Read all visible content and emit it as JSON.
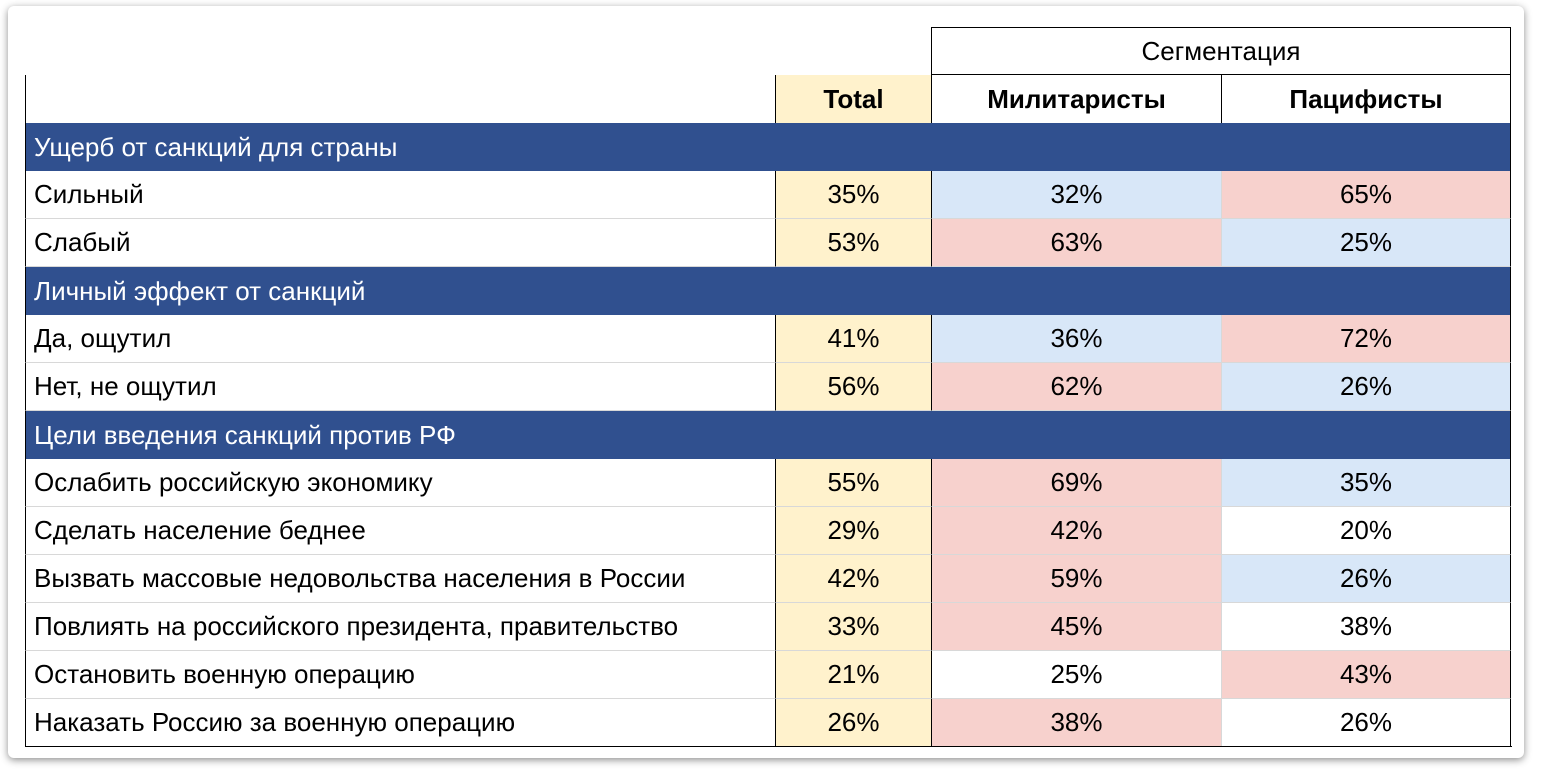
{
  "header": {
    "group": "Сегментация",
    "columns": [
      "Total",
      "Милитаристы",
      "Пацифисты"
    ]
  },
  "colors": {
    "section": "#30508f",
    "total": "#fff2cc"
  },
  "sections": [
    {
      "title": "Ущерб от санкций для страны",
      "rows": [
        {
          "label": "Сильный",
          "cells": [
            "35%",
            "32%",
            "65%"
          ],
          "fills": [
            "#d8e7f8",
            "#f7d1cd"
          ]
        },
        {
          "label": "Слабый",
          "cells": [
            "53%",
            "63%",
            "25%"
          ],
          "fills": [
            "#f7d1cd",
            "#d8e7f8"
          ]
        }
      ]
    },
    {
      "title": "Личный эффект от санкций",
      "rows": [
        {
          "label": "Да, ощутил",
          "cells": [
            "41%",
            "36%",
            "72%"
          ],
          "fills": [
            "#d8e7f8",
            "#f7d1cd"
          ]
        },
        {
          "label": "Нет, не ощутил",
          "cells": [
            "56%",
            "62%",
            "26%"
          ],
          "fills": [
            "#f7d1cd",
            "#d8e7f8"
          ]
        }
      ]
    },
    {
      "title": "Цели введения санкций против РФ",
      "rows": [
        {
          "label": "Ослабить российскую экономику",
          "cells": [
            "55%",
            "69%",
            "35%"
          ],
          "fills": [
            "#f7d1cd",
            "#d8e7f8"
          ]
        },
        {
          "label": "Сделать население беднее",
          "cells": [
            "29%",
            "42%",
            "20%"
          ],
          "fills": [
            "#f7d1cd",
            null
          ]
        },
        {
          "label": "Вызвать массовые недовольства населения в России",
          "cells": [
            "42%",
            "59%",
            "26%"
          ],
          "fills": [
            "#f7d1cd",
            "#d8e7f8"
          ]
        },
        {
          "label": "Повлиять на российского президента, правительство",
          "cells": [
            "33%",
            "45%",
            "38%"
          ],
          "fills": [
            "#f7d1cd",
            null
          ]
        },
        {
          "label": "Остановить военную операцию",
          "cells": [
            "21%",
            "25%",
            "43%"
          ],
          "fills": [
            null,
            "#f7d1cd"
          ]
        },
        {
          "label": "Наказать Россию за военную операцию",
          "cells": [
            "26%",
            "38%",
            "26%"
          ],
          "fills": [
            "#f7d1cd",
            null
          ]
        }
      ]
    }
  ]
}
